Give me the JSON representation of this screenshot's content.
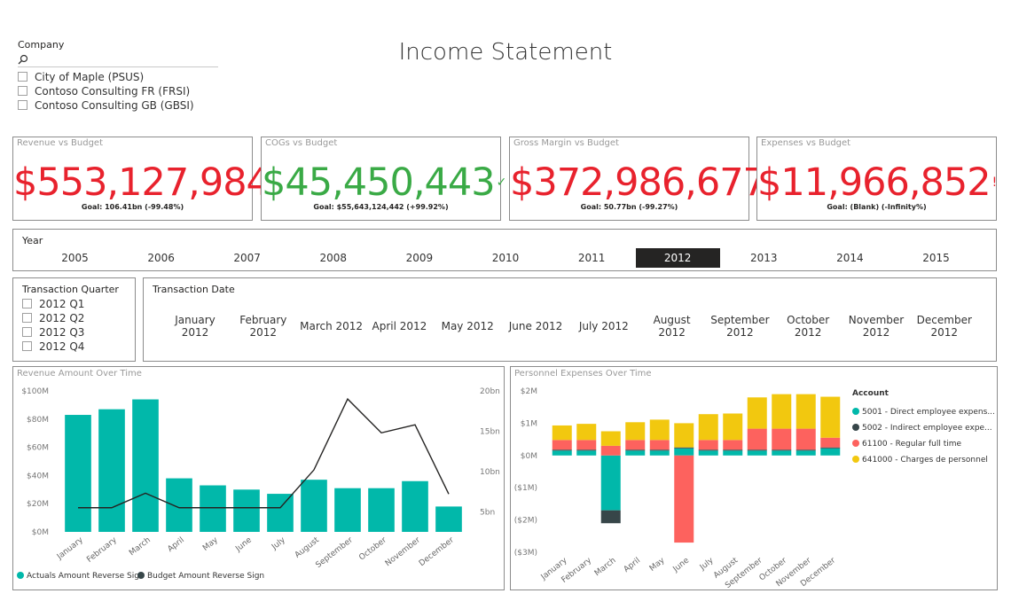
{
  "title": "Income Statement",
  "company_slicer": {
    "title": "Company",
    "search_placeholder": "",
    "items": [
      "City of Maple (PSUS)",
      "Contoso Consulting FR (FRSI)",
      "Contoso Consulting GB (GBSI)"
    ]
  },
  "kpis": [
    {
      "title": "Revenue vs Budget",
      "value": "$553,127,984",
      "indicator": "!",
      "goal": "Goal: 106.41bn (-99.48%)",
      "status": "bad"
    },
    {
      "title": "COGs vs Budget",
      "value": "$45,450,443",
      "indicator": "✓",
      "goal": "Goal: $55,643,124,442 (+99.92%)",
      "status": "good"
    },
    {
      "title": "Gross Margin vs Budget",
      "value": "$372,986,677",
      "indicator": "!",
      "goal": "Goal: 50.77bn (-99.27%)",
      "status": "bad"
    },
    {
      "title": "Expenses vs Budget",
      "value": "$11,966,852",
      "indicator": "!",
      "goal": "Goal: (Blank) (-Infinity%)",
      "status": "bad"
    }
  ],
  "year_slicer": {
    "title": "Year",
    "years": [
      "2005",
      "2006",
      "2007",
      "2008",
      "2009",
      "2010",
      "2011",
      "2012",
      "2013",
      "2014",
      "2015"
    ],
    "selected": "2012"
  },
  "quarter_slicer": {
    "title": "Transaction Quarter",
    "items": [
      "2012 Q1",
      "2012 Q2",
      "2012 Q3",
      "2012 Q4"
    ]
  },
  "date_slicer": {
    "title": "Transaction Date",
    "items": [
      [
        "January",
        "2012"
      ],
      [
        "February",
        "2012"
      ],
      [
        "March 2012"
      ],
      [
        "April 2012"
      ],
      [
        "May 2012"
      ],
      [
        "June 2012"
      ],
      [
        "July 2012"
      ],
      [
        "August",
        "2012"
      ],
      [
        "September",
        "2012"
      ],
      [
        "October",
        "2012"
      ],
      [
        "November",
        "2012"
      ],
      [
        "December",
        "2012"
      ]
    ]
  },
  "colors": {
    "teal": "#01b8aa",
    "dark": "#374649",
    "salmon": "#fd625e",
    "yellow": "#f2c80f",
    "bad": "#e8222d",
    "good": "#3aaa46"
  },
  "chart_data": [
    {
      "type": "bar",
      "title": "Revenue Amount Over Time",
      "categories": [
        "January",
        "February",
        "March",
        "April",
        "May",
        "June",
        "July",
        "August",
        "September",
        "October",
        "November",
        "December"
      ],
      "series": [
        {
          "name": "Actuals Amount Reverse Sign",
          "type": "bar",
          "axis": "left",
          "values": [
            83,
            87,
            94,
            38,
            33,
            30,
            27,
            37,
            31,
            31,
            36,
            18
          ]
        },
        {
          "name": "Budget Amount Reverse Sign",
          "type": "line",
          "axis": "right",
          "values": [
            5.5,
            5.5,
            7.3,
            5.5,
            5.5,
            5.5,
            5.5,
            10.2,
            19,
            14.8,
            15.8,
            7.2
          ]
        }
      ],
      "left_axis": {
        "ticks": [
          "$0M",
          "$20M",
          "$40M",
          "$60M",
          "$80M",
          "$100M"
        ],
        "range": [
          0,
          100
        ]
      },
      "right_axis": {
        "ticks": [
          "5bn",
          "10bn",
          "15bn",
          "20bn"
        ],
        "range": [
          2.5,
          20
        ]
      },
      "legend": "bottom-left"
    },
    {
      "type": "bar",
      "stacked": true,
      "title": "Personnel Expenses Over Time",
      "categories": [
        "January",
        "February",
        "March",
        "April",
        "May",
        "June",
        "July",
        "August",
        "September",
        "October",
        "November",
        "December"
      ],
      "legend_title": "Account",
      "series": [
        {
          "name": "5001 - Direct employee expens...",
          "color": "teal",
          "values": [
            0.15,
            0.15,
            -1.7,
            0.15,
            0.15,
            0.22,
            0.15,
            0.15,
            0.15,
            0.15,
            0.15,
            0.22
          ]
        },
        {
          "name": "5002 - Indirect employee expe...",
          "color": "dark",
          "values": [
            0.03,
            0.03,
            -0.4,
            0.03,
            0.03,
            0.03,
            0.03,
            0.03,
            0.03,
            0.03,
            0.03,
            0.03
          ]
        },
        {
          "name": "61100 - Regular full time",
          "color": "salmon",
          "values": [
            0.3,
            0.3,
            0.3,
            0.3,
            0.3,
            -2.7,
            0.3,
            0.3,
            0.65,
            0.65,
            0.65,
            0.3
          ]
        },
        {
          "name": "641000 - Charges de personnel",
          "color": "yellow",
          "values": [
            0.45,
            0.5,
            0.45,
            0.55,
            0.63,
            0.75,
            0.8,
            0.82,
            0.97,
            1.07,
            1.07,
            1.27
          ]
        }
      ],
      "y_axis": {
        "ticks": [
          "($3M)",
          "($2M)",
          "($1M)",
          "$0M",
          "$1M",
          "$2M"
        ],
        "range": [
          -3,
          2
        ]
      },
      "legend": "right"
    }
  ]
}
